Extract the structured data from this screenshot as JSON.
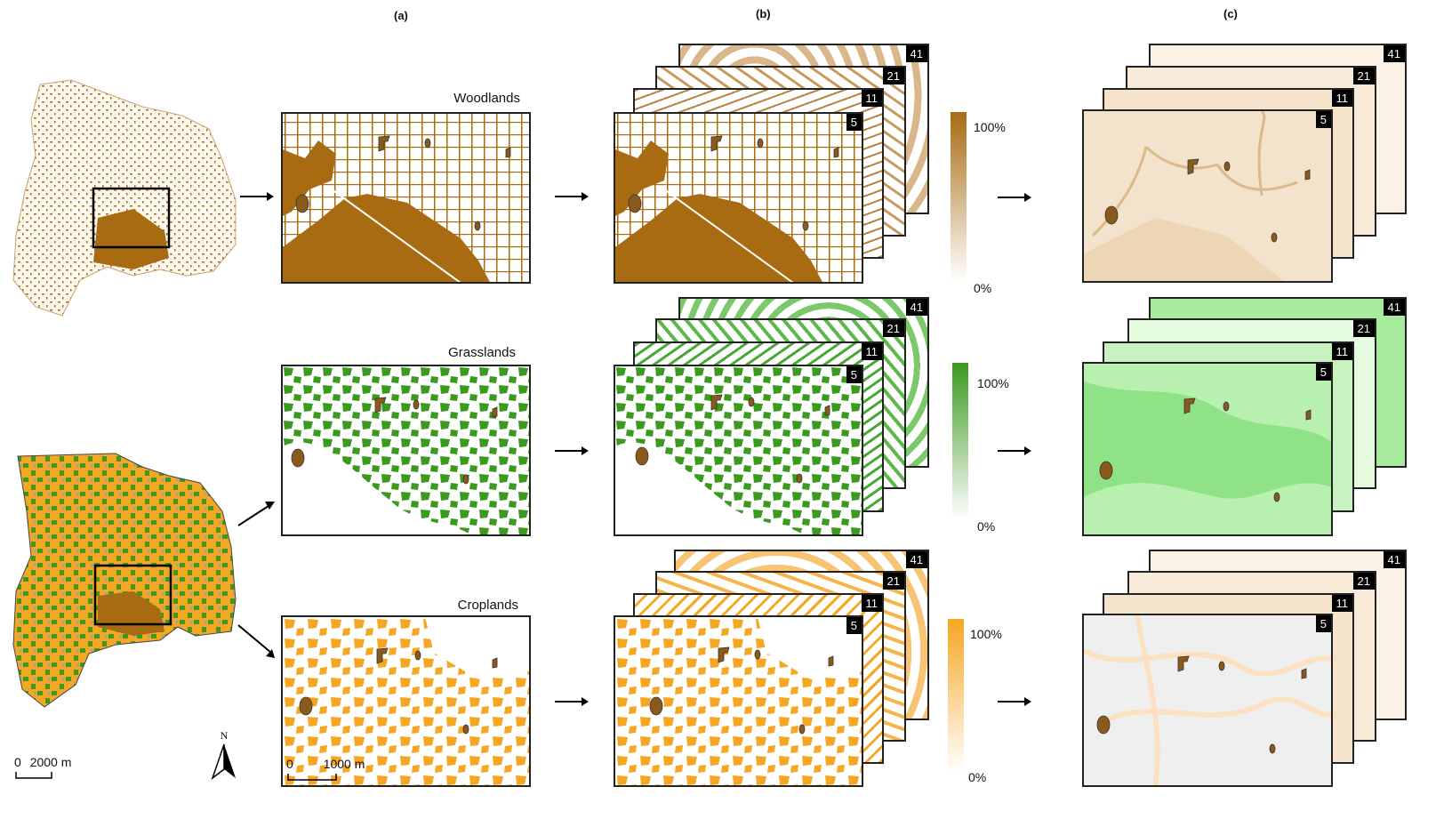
{
  "panels": [
    "(a)",
    "(b)",
    "(c)"
  ],
  "land_covers": [
    {
      "name": "Woodlands",
      "color": "#a86b12"
    },
    {
      "name": "Grasslands",
      "color": "#3a9a1e"
    },
    {
      "name": "Croplands",
      "color": "#f5a623"
    }
  ],
  "scales": [
    "5",
    "11",
    "21",
    "41"
  ],
  "colorbar": {
    "max": "100%",
    "min": "0%"
  },
  "scalebar_region": {
    "zero": "0",
    "distance": "2000 m"
  },
  "scalebar_zoom": {
    "zero": "0",
    "distance": "1000 m"
  },
  "north": "N",
  "colors": {
    "shrub": "#8a5a1c",
    "woodland_pale": "#f3e3cd",
    "grass_pale": "#b8f0b0",
    "crop_pale": "#efefef",
    "crop_fringe": "#fbe1c0"
  }
}
